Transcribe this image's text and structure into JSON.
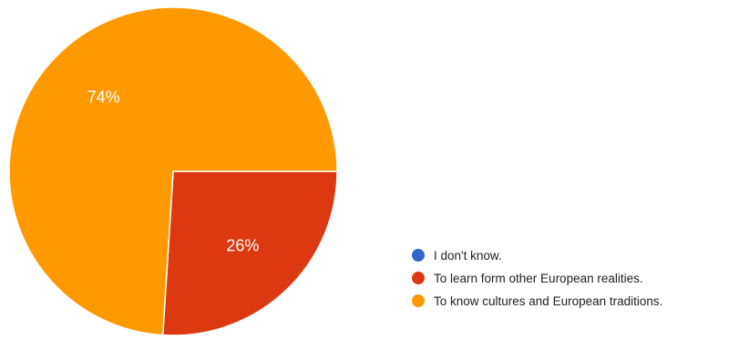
{
  "chart_data": {
    "type": "pie",
    "slices": [
      {
        "label": "I don't know.",
        "value": 0,
        "color": "#3366cc"
      },
      {
        "label": "To learn form other European realities.",
        "value": 26,
        "color": "#dc3912"
      },
      {
        "label": "To know cultures and European traditions.",
        "value": 74,
        "color": "#ff9900"
      }
    ],
    "data_labels": [
      "",
      "26%",
      "74%"
    ],
    "legend_position": "bottom-right"
  }
}
